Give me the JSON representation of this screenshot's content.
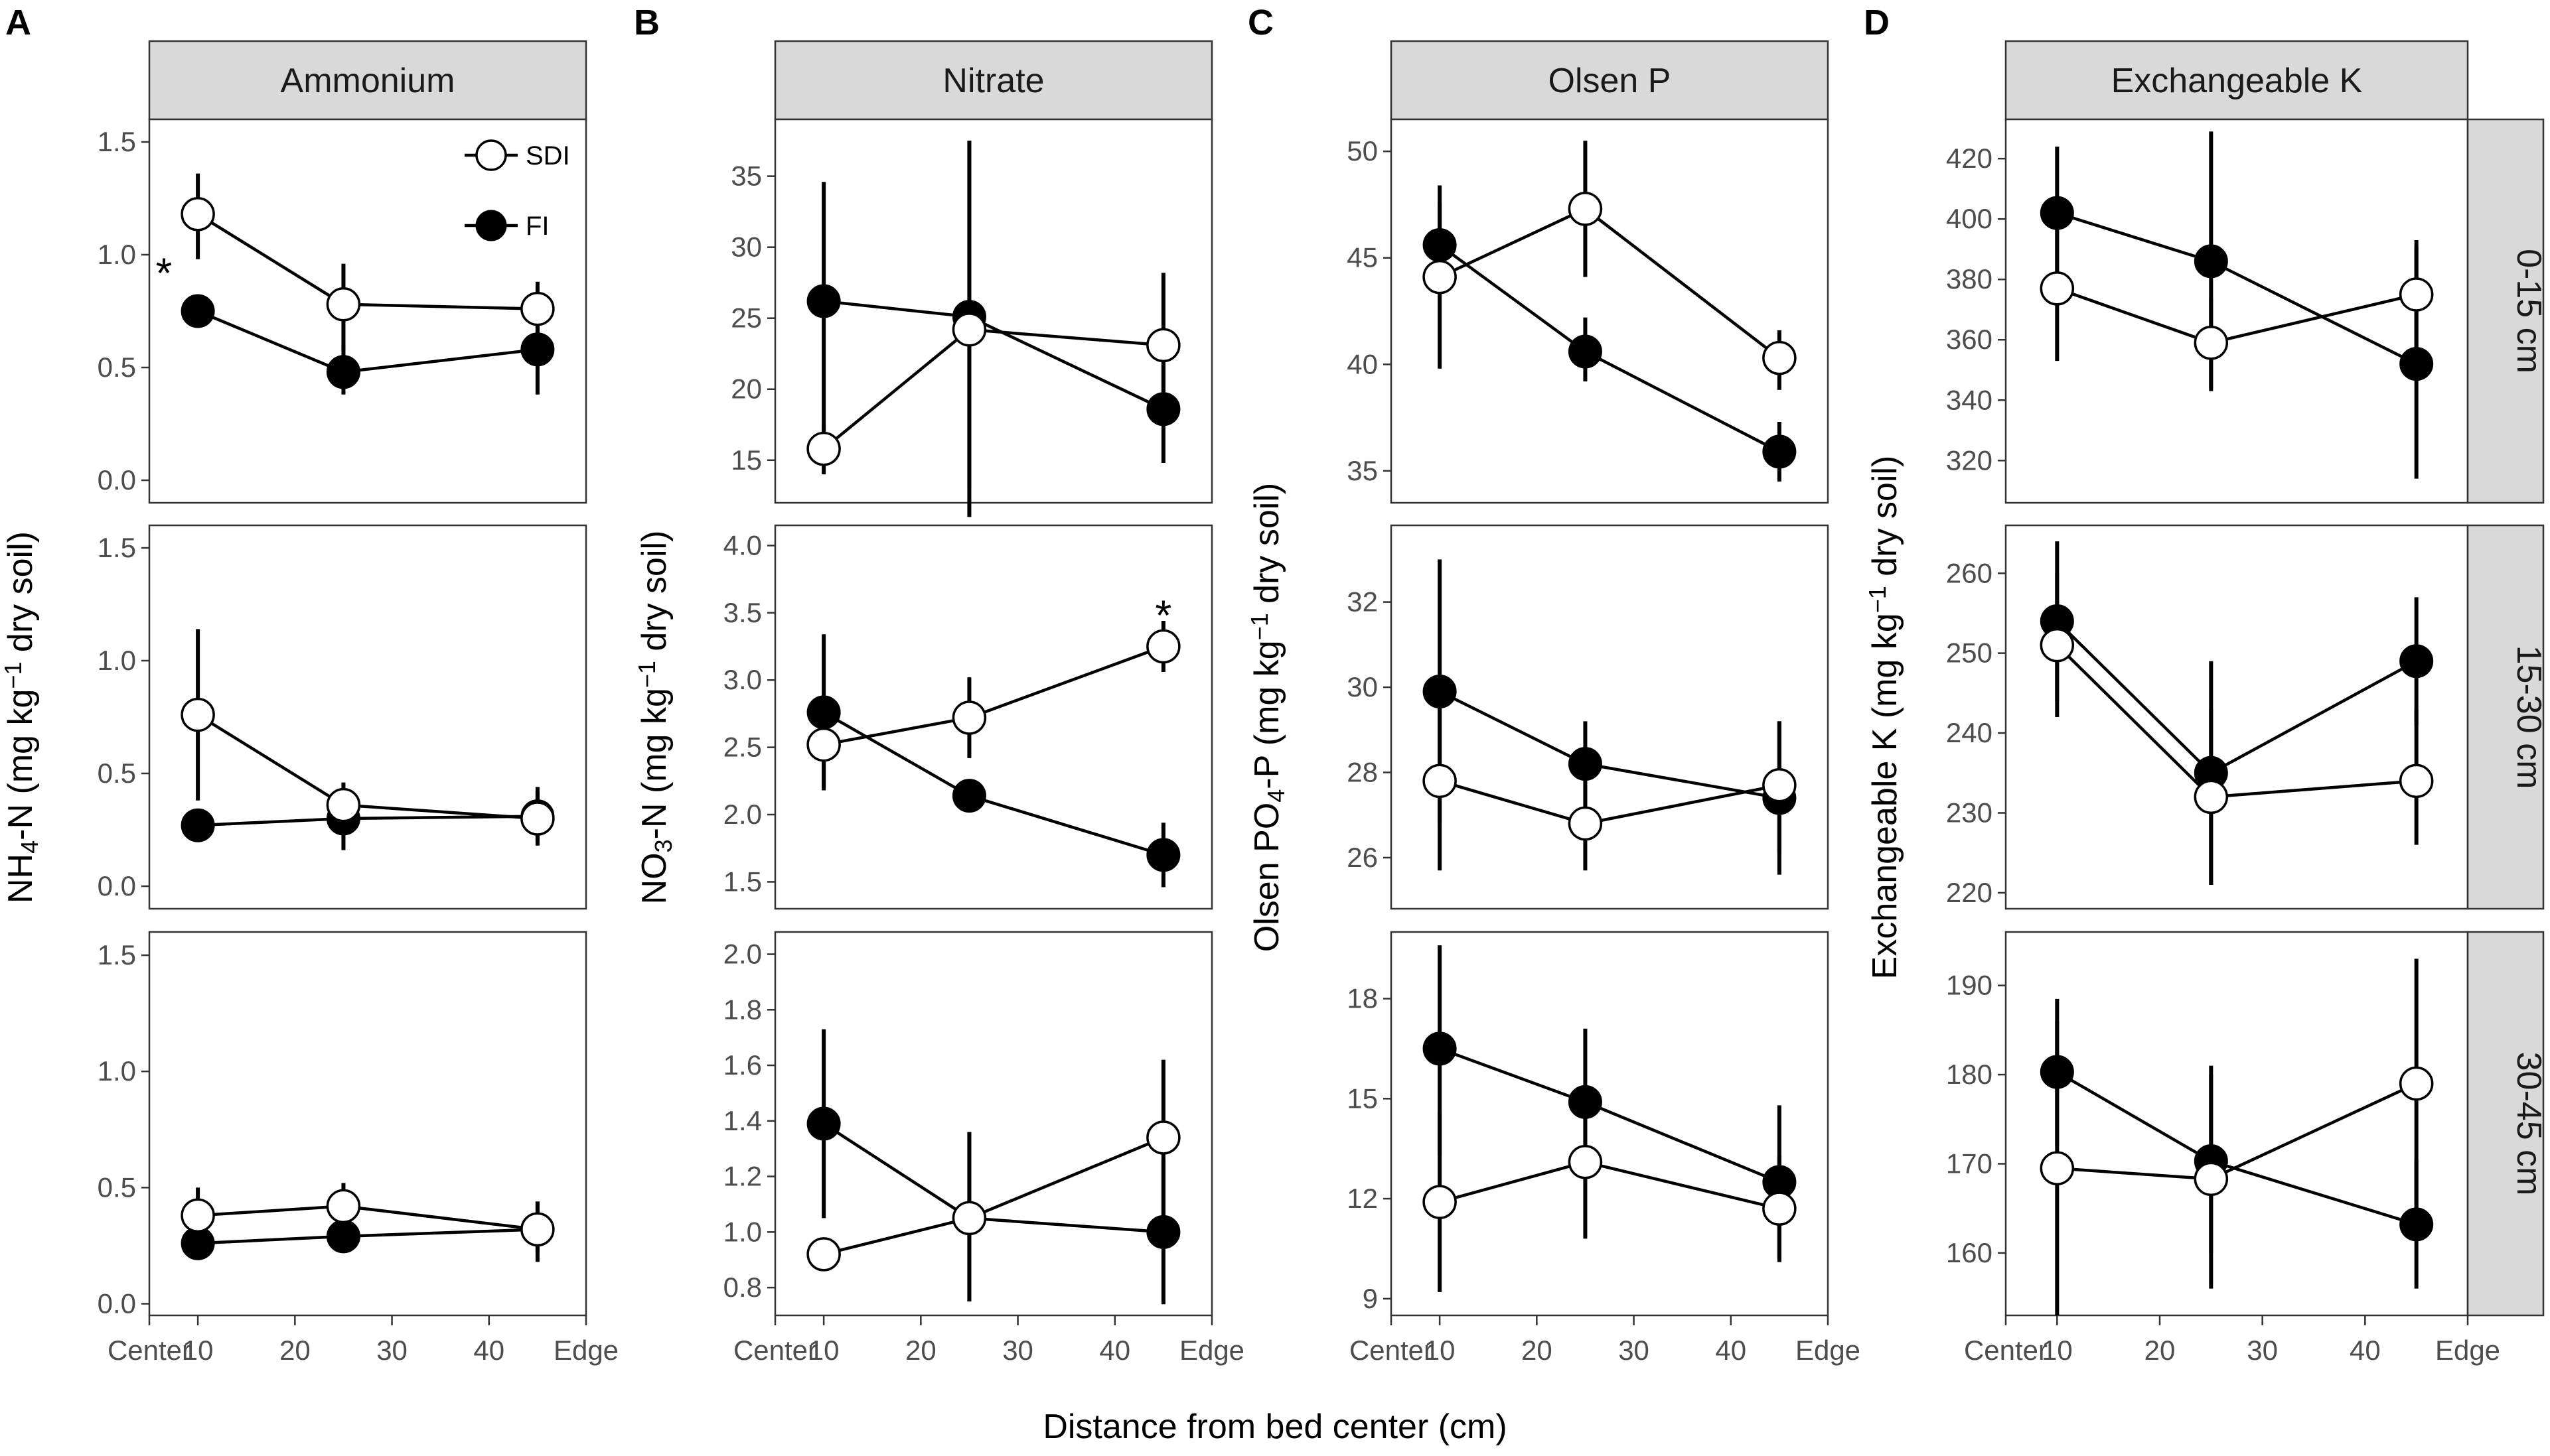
{
  "chart_data": {
    "type": "line",
    "x_axis": {
      "title": "Distance from bed center (cm)",
      "ticks": [
        {
          "value": 5,
          "label": "Center"
        },
        {
          "value": 10,
          "label": "10"
        },
        {
          "value": 20,
          "label": "20"
        },
        {
          "value": 30,
          "label": "30"
        },
        {
          "value": 40,
          "label": "40"
        },
        {
          "value": 50,
          "label": "Edge"
        }
      ],
      "range": [
        5,
        50
      ]
    },
    "x_values": [
      10,
      25,
      45
    ],
    "depths": [
      "0-15 cm",
      "15-30 cm",
      "30-45 cm"
    ],
    "legend": {
      "position": "top-right of panel A, 0-15 cm",
      "entries": [
        "SDI",
        "FI"
      ]
    },
    "panels": [
      {
        "letter": "A",
        "strip": "Ammonium",
        "y_title_parts": [
          {
            "text": "NH",
            "shift": ""
          },
          {
            "text": "4",
            "shift": "sub"
          },
          {
            "text": "-N (mg kg",
            "shift": ""
          },
          {
            "text": "−1",
            "shift": "super"
          },
          {
            "text": " dry soil)",
            "shift": ""
          }
        ],
        "rows": [
          {
            "ylim": [
              -0.1,
              1.6
            ],
            "yticks": [
              0.0,
              0.5,
              1.0,
              1.5
            ],
            "tick_labels": [
              "0.0",
              "0.5",
              "1.0",
              "1.5"
            ],
            "series": [
              {
                "name": "SDI",
                "y": [
                  1.18,
                  0.78,
                  0.76
                ],
                "err_low": [
                  0.98,
                  0.58,
                  0.6
                ],
                "err_high": [
                  1.36,
                  0.96,
                  0.88
                ]
              },
              {
                "name": "FI",
                "y": [
                  0.75,
                  0.48,
                  0.58
                ],
                "err_low": [
                  0.7,
                  0.38,
                  0.38
                ],
                "err_high": [
                  0.8,
                  0.6,
                  0.76
                ]
              }
            ],
            "annotations": [
              {
                "text": "*",
                "x": 6.5,
                "y": 0.96
              }
            ]
          },
          {
            "ylim": [
              -0.1,
              1.6
            ],
            "yticks": [
              0.0,
              0.5,
              1.0,
              1.5
            ],
            "tick_labels": [
              "0.0",
              "0.5",
              "1.0",
              "1.5"
            ],
            "series": [
              {
                "name": "SDI",
                "y": [
                  0.76,
                  0.36,
                  0.3
                ],
                "err_low": [
                  0.38,
                  0.26,
                  0.2
                ],
                "err_high": [
                  1.14,
                  0.46,
                  0.42
                ]
              },
              {
                "name": "FI",
                "y": [
                  0.27,
                  0.3,
                  0.31
                ],
                "err_low": [
                  0.2,
                  0.16,
                  0.18
                ],
                "err_high": [
                  0.33,
                  0.44,
                  0.44
                ]
              }
            ],
            "annotations": []
          },
          {
            "ylim": [
              -0.05,
              1.6
            ],
            "yticks": [
              0.0,
              0.5,
              1.0,
              1.5
            ],
            "tick_labels": [
              "0.0",
              "0.5",
              "1.0",
              "1.5"
            ],
            "series": [
              {
                "name": "SDI",
                "y": [
                  0.38,
                  0.42,
                  0.32
                ],
                "err_low": [
                  0.28,
                  0.32,
                  0.22
                ],
                "err_high": [
                  0.5,
                  0.52,
                  0.44
                ]
              },
              {
                "name": "FI",
                "y": [
                  0.26,
                  0.29,
                  0.32
                ],
                "err_low": [
                  0.2,
                  0.24,
                  0.18
                ],
                "err_high": [
                  0.32,
                  0.34,
                  0.44
                ]
              }
            ],
            "annotations": []
          }
        ]
      },
      {
        "letter": "B",
        "strip": "Nitrate",
        "y_title_parts": [
          {
            "text": "NO",
            "shift": ""
          },
          {
            "text": "3",
            "shift": "sub"
          },
          {
            "text": "-N (mg kg",
            "shift": ""
          },
          {
            "text": "−1",
            "shift": "super"
          },
          {
            "text": " dry soil)",
            "shift": ""
          }
        ],
        "rows": [
          {
            "ylim": [
              12,
              39
            ],
            "yticks": [
              15,
              20,
              25,
              30,
              35
            ],
            "tick_labels": [
              "15",
              "20",
              "25",
              "30",
              "35"
            ],
            "series": [
              {
                "name": "SDI",
                "y": [
                  15.8,
                  24.2,
                  23.1
                ],
                "err_low": [
                  14.0,
                  11.0,
                  18.0
                ],
                "err_high": [
                  17.5,
                  37.5,
                  28.2
                ]
              },
              {
                "name": "FI",
                "y": [
                  26.2,
                  25.1,
                  18.6
                ],
                "err_low": [
                  15.5,
                  13.0,
                  14.8
                ],
                "err_high": [
                  34.6,
                  37.5,
                  22.5
                ]
              }
            ],
            "annotations": []
          },
          {
            "ylim": [
              1.3,
              4.15
            ],
            "yticks": [
              1.5,
              2.0,
              2.5,
              3.0,
              3.5,
              4.0
            ],
            "tick_labels": [
              "1.5",
              "2.0",
              "2.5",
              "3.0",
              "3.5",
              "4.0"
            ],
            "series": [
              {
                "name": "SDI",
                "y": [
                  2.52,
                  2.72,
                  3.25
                ],
                "err_low": [
                  2.18,
                  2.42,
                  3.06
                ],
                "err_high": [
                  2.85,
                  3.02,
                  3.44
                ]
              },
              {
                "name": "FI",
                "y": [
                  2.76,
                  2.14,
                  1.7
                ],
                "err_low": [
                  2.2,
                  2.08,
                  1.46
                ],
                "err_high": [
                  3.34,
                  2.2,
                  1.94
                ]
              }
            ],
            "annotations": [
              {
                "text": "*",
                "x": 45,
                "y": 3.55
              }
            ]
          },
          {
            "ylim": [
              0.7,
              2.08
            ],
            "yticks": [
              0.8,
              1.0,
              1.2,
              1.4,
              1.6,
              1.8,
              2.0
            ],
            "tick_labels": [
              "0.8",
              "1.0",
              "1.2",
              "1.4",
              "1.6",
              "1.8",
              "2.0"
            ],
            "series": [
              {
                "name": "SDI",
                "y": [
                  0.92,
                  1.05,
                  1.34
                ],
                "err_low": [
                  0.88,
                  0.75,
                  1.05
                ],
                "err_high": [
                  0.96,
                  1.36,
                  1.62
                ]
              },
              {
                "name": "FI",
                "y": [
                  1.39,
                  1.05,
                  1.0
                ],
                "err_low": [
                  1.05,
                  0.75,
                  0.74
                ],
                "err_high": [
                  1.73,
                  1.36,
                  1.26
                ]
              }
            ],
            "annotations": []
          }
        ]
      },
      {
        "letter": "C",
        "strip": "Olsen P",
        "y_title_parts": [
          {
            "text": "Olsen PO",
            "shift": ""
          },
          {
            "text": "4",
            "shift": "sub"
          },
          {
            "text": "-P (mg kg",
            "shift": ""
          },
          {
            "text": "−1",
            "shift": "super"
          },
          {
            "text": " dry soil)",
            "shift": ""
          }
        ],
        "rows": [
          {
            "ylim": [
              33.5,
              51.5
            ],
            "yticks": [
              35,
              40,
              45,
              50
            ],
            "tick_labels": [
              "35",
              "40",
              "45",
              "50"
            ],
            "series": [
              {
                "name": "SDI",
                "y": [
                  44.1,
                  47.3,
                  40.3
                ],
                "err_low": [
                  39.8,
                  44.1,
                  38.8
                ],
                "err_high": [
                  48.4,
                  50.5,
                  41.6
                ]
              },
              {
                "name": "FI",
                "y": [
                  45.6,
                  40.6,
                  35.9
                ],
                "err_low": [
                  43.6,
                  39.2,
                  34.5
                ],
                "err_high": [
                  47.6,
                  42.2,
                  37.3
                ]
              }
            ],
            "annotations": []
          },
          {
            "ylim": [
              24.8,
              33.8
            ],
            "yticks": [
              26,
              28,
              30,
              32
            ],
            "tick_labels": [
              "26",
              "28",
              "30",
              "32"
            ],
            "series": [
              {
                "name": "SDI",
                "y": [
                  27.8,
                  26.8,
                  27.7
                ],
                "err_low": [
                  25.7,
                  25.7,
                  26.1
                ],
                "err_high": [
                  29.8,
                  27.7,
                  29.2
                ]
              },
              {
                "name": "FI",
                "y": [
                  29.9,
                  28.2,
                  27.4
                ],
                "err_low": [
                  26.8,
                  27.2,
                  25.6
                ],
                "err_high": [
                  33.0,
                  29.2,
                  29.2
                ]
              }
            ],
            "annotations": []
          },
          {
            "ylim": [
              8.5,
              20.0
            ],
            "yticks": [
              9,
              12,
              15,
              18
            ],
            "tick_labels": [
              "9",
              "12",
              "15",
              "18"
            ],
            "series": [
              {
                "name": "SDI",
                "y": [
                  11.9,
                  13.1,
                  11.7
                ],
                "err_low": [
                  9.2,
                  10.8,
                  10.1
                ],
                "err_high": [
                  14.6,
                  15.4,
                  13.3
                ]
              },
              {
                "name": "FI",
                "y": [
                  16.5,
                  14.9,
                  12.5
                ],
                "err_low": [
                  13.3,
                  12.7,
                  10.2
                ],
                "err_high": [
                  19.6,
                  17.1,
                  14.8
                ]
              }
            ],
            "annotations": []
          }
        ]
      },
      {
        "letter": "D",
        "strip": "Exchangeable K",
        "y_title_parts": [
          {
            "text": "Exchangeable K (mg kg",
            "shift": ""
          },
          {
            "text": "−1",
            "shift": "super"
          },
          {
            "text": " dry soil)",
            "shift": ""
          }
        ],
        "rows": [
          {
            "ylim": [
              306,
              433
            ],
            "yticks": [
              320,
              340,
              360,
              380,
              400,
              420
            ],
            "tick_labels": [
              "320",
              "340",
              "360",
              "380",
              "400",
              "420"
            ],
            "series": [
              {
                "name": "SDI",
                "y": [
                  377,
                  359,
                  375
                ],
                "err_low": [
                  353,
                  344,
                  356
                ],
                "err_high": [
                  401,
                  374,
                  393
                ]
              },
              {
                "name": "FI",
                "y": [
                  402,
                  386,
                  352
                ],
                "err_low": [
                  380,
                  343,
                  314
                ],
                "err_high": [
                  424,
                  429,
                  391
                ]
              }
            ],
            "annotations": []
          },
          {
            "ylim": [
              218,
              266
            ],
            "yticks": [
              220,
              230,
              240,
              250,
              260
            ],
            "tick_labels": [
              "220",
              "230",
              "240",
              "250",
              "260"
            ],
            "series": [
              {
                "name": "SDI",
                "y": [
                  251,
                  232,
                  234
                ],
                "err_low": [
                  242,
                  221,
                  226
                ],
                "err_high": [
                  260,
                  243,
                  243
                ]
              },
              {
                "name": "FI",
                "y": [
                  254,
                  235,
                  249
                ],
                "err_low": [
                  244,
                  221,
                  241
                ],
                "err_high": [
                  264,
                  249,
                  257
                ]
              }
            ],
            "annotations": []
          },
          {
            "ylim": [
              153,
              196
            ],
            "yticks": [
              160,
              170,
              180,
              190
            ],
            "tick_labels": [
              "160",
              "170",
              "180",
              "190"
            ],
            "series": [
              {
                "name": "SDI",
                "y": [
                  169.5,
                  168.3,
                  179.0
                ],
                "err_low": [
                  153,
                  156,
                  163
                ],
                "err_high": [
                  186,
                  181,
                  193
                ]
              },
              {
                "name": "FI",
                "y": [
                  180.3,
                  170.3,
                  163.2
                ],
                "err_low": [
                  172,
                  160,
                  156
                ],
                "err_high": [
                  188.5,
                  180,
                  170.5
                ]
              }
            ],
            "annotations": []
          }
        ]
      }
    ]
  }
}
